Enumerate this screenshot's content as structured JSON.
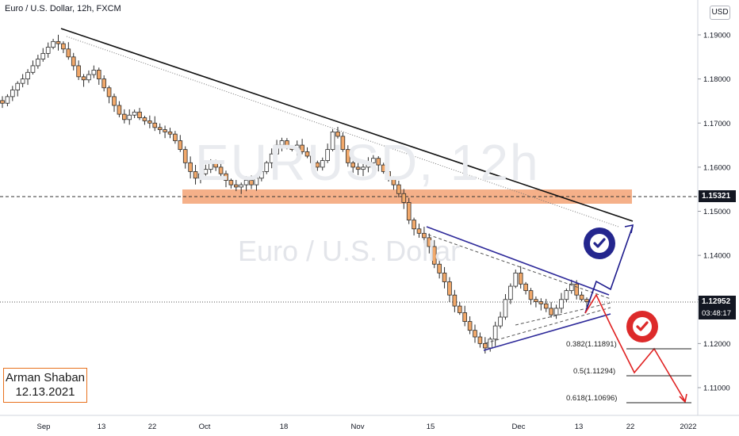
{
  "title": "Euro / U.S. Dollar, 12h, FXCM",
  "currency": "USD",
  "watermark": {
    "symbol": "EURUSD, 12h",
    "name": "Euro / U.S. Dollar"
  },
  "author": {
    "name": "Arman Shaban",
    "date": "12.13.2021"
  },
  "price_tags": {
    "level": "1.15321",
    "current": "1.12952",
    "countdown": "03:48:17"
  },
  "fib_labels": [
    "0.382(1.11891)",
    "0.5(1.11294)",
    "0.618(1.10696)"
  ],
  "icons": [
    "check-badge-icon-blue",
    "check-badge-icon-red"
  ],
  "colors": {
    "bull": "#ffffff",
    "bear": "#f2a96b",
    "wick": "#2b2b2b",
    "zone": "#f4a77c",
    "trend_main": "#111111",
    "triangle": "#2e2a9a",
    "up_path": "#1c1a8c",
    "down_path": "#e02222",
    "check_blue": "#24268e",
    "check_red": "#dd2a2a"
  },
  "chart_data": {
    "type": "candlestick",
    "y_ticks": [
      "1.19000",
      "1.18000",
      "1.17000",
      "1.16000",
      "1.15000",
      "1.14000",
      "1.13000",
      "1.12000",
      "1.11000"
    ],
    "x_ticks": [
      "Sep",
      "13",
      "22",
      "Oct",
      "18",
      "Nov",
      "15",
      "Dec",
      "13",
      "22",
      "2022"
    ],
    "close_path": [
      1.1745,
      1.176,
      1.1775,
      1.179,
      1.18,
      1.1815,
      1.183,
      1.1845,
      1.1858,
      1.1872,
      1.1885,
      1.188,
      1.1868,
      1.185,
      1.183,
      1.1805,
      1.1798,
      1.181,
      1.182,
      1.18,
      1.178,
      1.176,
      1.174,
      1.172,
      1.1708,
      1.1718,
      1.1725,
      1.1712,
      1.1705,
      1.17,
      1.169,
      1.1685,
      1.168,
      1.1675,
      1.166,
      1.164,
      1.161,
      1.159,
      1.1575,
      1.1585,
      1.1595,
      1.161,
      1.16,
      1.1585,
      1.157,
      1.156,
      1.1555,
      1.156,
      1.157,
      1.156,
      1.1575,
      1.159,
      1.161,
      1.163,
      1.165,
      1.166,
      1.1645,
      1.164,
      1.165,
      1.1635,
      1.1625,
      1.161,
      1.16,
      1.1615,
      1.164,
      1.168,
      1.167,
      1.164,
      1.161,
      1.16,
      1.1595,
      1.16,
      1.161,
      1.162,
      1.1605,
      1.159,
      1.1575,
      1.156,
      1.154,
      1.152,
      1.148,
      1.146,
      1.145,
      1.144,
      1.142,
      1.138,
      1.136,
      1.134,
      1.131,
      1.1285,
      1.127,
      1.125,
      1.123,
      1.1215,
      1.12,
      1.119,
      1.121,
      1.124,
      1.126,
      1.13,
      1.133,
      1.136,
      1.1335,
      1.132,
      1.13,
      1.1295,
      1.129,
      1.128,
      1.1265,
      1.128,
      1.13,
      1.132,
      1.1335,
      1.131,
      1.13,
      1.1295
    ]
  }
}
